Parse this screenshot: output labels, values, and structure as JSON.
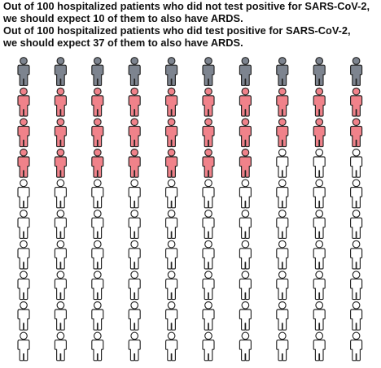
{
  "caption": {
    "line1": "Out of 100 hospitalized patients who did not test positive for SARS-CoV-2,",
    "line2": "we should expect 10 of them to also have ARDS.",
    "line3": "Out of 100 hospitalized patients who did test positive for SARS-CoV-2,",
    "line4": "we should expect 37 of them to also have ARDS."
  },
  "chart_data": {
    "type": "icon-array",
    "total_icons": 100,
    "rows": 10,
    "columns": 10,
    "series": [
      {
        "name": "",
        "count": 10,
        "color": "#7d848f"
      },
      {
        "name": "",
        "count": 27,
        "color": "#f0828a"
      },
      {
        "name": "",
        "count": 63,
        "color": "#ffffff"
      }
    ]
  }
}
